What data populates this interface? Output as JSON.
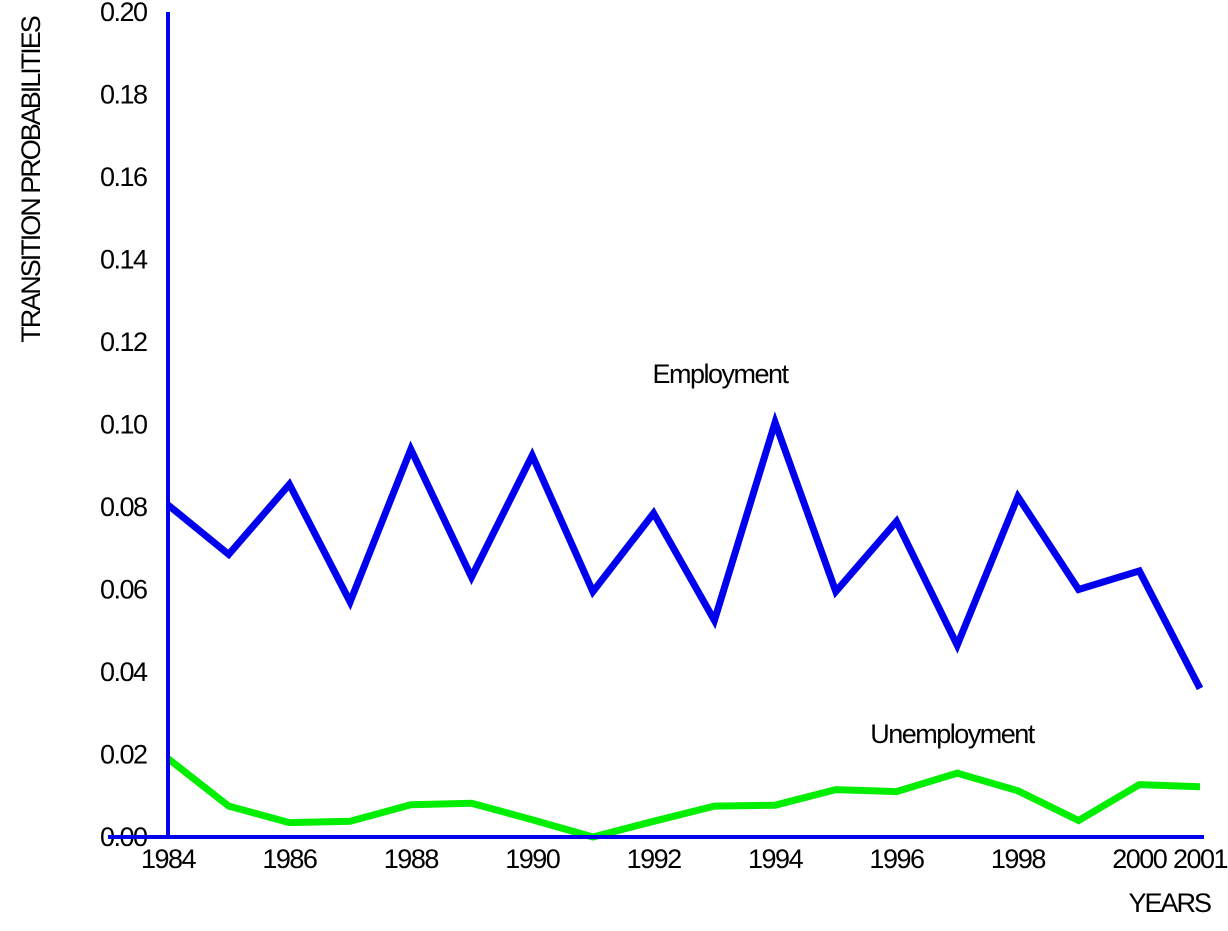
{
  "chart_data": {
    "type": "line",
    "title": "",
    "xlabel": "YEARS",
    "ylabel": "TRANSITION PROBABILITIES",
    "x": [
      1984,
      1985,
      1986,
      1987,
      1988,
      1989,
      1990,
      1991,
      1992,
      1993,
      1994,
      1995,
      1996,
      1997,
      1998,
      1999,
      2000,
      2001
    ],
    "x_tick_labels": [
      "1984",
      "1986",
      "1988",
      "1990",
      "1992",
      "1994",
      "1996",
      "1998",
      "2000",
      "2001"
    ],
    "y_tick_labels": [
      "0.00",
      "0.02",
      "0.04",
      "0.06",
      "0.08",
      "0.10",
      "0.12",
      "0.14",
      "0.16",
      "0.18",
      "0.20"
    ],
    "ylim": [
      0,
      0.2
    ],
    "grid": false,
    "series": [
      {
        "name": "Employment",
        "color": "#0000ee",
        "values": [
          0.0805,
          0.0685,
          0.0855,
          0.057,
          0.094,
          0.063,
          0.0925,
          0.0595,
          0.0785,
          0.0525,
          0.1005,
          0.0595,
          0.0765,
          0.0465,
          0.0825,
          0.06,
          0.0645,
          0.036
        ]
      },
      {
        "name": "Unemployment",
        "color": "#00ee00",
        "values": [
          0.019,
          0.0075,
          0.0035,
          0.0038,
          0.0078,
          0.0082,
          0.0042,
          0.0,
          0.0038,
          0.0075,
          0.0077,
          0.0115,
          0.011,
          0.0155,
          0.0112,
          0.004,
          0.0127,
          0.0122
        ]
      }
    ]
  }
}
